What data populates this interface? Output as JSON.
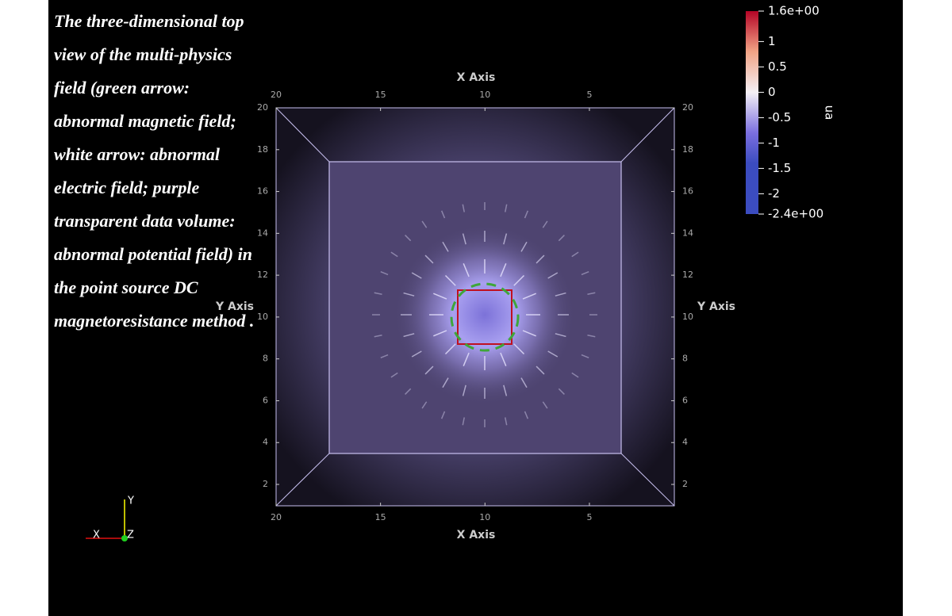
{
  "caption": "The three-dimensional top view of the multi-physics field (green arrow: abnormal magnetic field; white arrow: abnormal electric field; purple transparent data volume: abnormal potential field) in the point source DC magnetoresistance method .",
  "x_axis": {
    "title": "X Axis",
    "ticks": [
      20,
      15,
      10,
      5
    ]
  },
  "y_axis": {
    "title": "Y Axis",
    "ticks": [
      20,
      18,
      16,
      14,
      12,
      10,
      8,
      6,
      4,
      2
    ]
  },
  "color_bar": {
    "title": "ua",
    "range": [
      -2.4,
      1.6
    ],
    "ticks": [
      {
        "value": 1.6,
        "label": "1.6e+00"
      },
      1,
      0.5,
      0,
      -0.5,
      -1,
      -1.5,
      -2,
      {
        "value": -2.4,
        "label": "-2.4e+00"
      }
    ]
  },
  "orientation_axes": {
    "x": "X",
    "y": "Y",
    "z": "Z"
  }
}
